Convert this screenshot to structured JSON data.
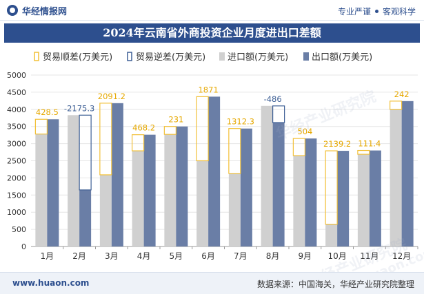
{
  "header": {
    "brand_name": "华经情报网",
    "tagline_left": "专业严谨",
    "tagline_right": "客观科学"
  },
  "footer": {
    "website": "www.huaon.com",
    "source": "数据来源：中国海关，华经产业研究院整理"
  },
  "watermarks": [
    "华经产业研究院",
    "华经产业研究院",
    "www.huaon.com"
  ],
  "colors": {
    "brand": "#2d4f8e",
    "surplus_outline": "#f2c037",
    "deficit_outline": "#3d5f95",
    "imports": "#d0d0d0",
    "exports": "#6a7ea6",
    "surplus_label": "#e6a800",
    "deficit_label": "#3d5f95"
  },
  "chart_data": {
    "type": "bar",
    "title": "2024年云南省外商投资企业月度进出口差额",
    "categories": [
      "1月",
      "2月",
      "3月",
      "4月",
      "5月",
      "6月",
      "7月",
      "8月",
      "9月",
      "10月",
      "11月",
      "12月"
    ],
    "ylim": [
      0,
      5000
    ],
    "yticks": [
      0,
      500,
      1000,
      1500,
      2000,
      2500,
      3000,
      3500,
      4000,
      4500,
      5000
    ],
    "legend_position": "top",
    "legend": [
      "贸易顺差(万美元)",
      "贸易逆差(万美元)",
      "进口额(万美元)",
      "出口额(万美元)"
    ],
    "series": [
      {
        "name": "进口额(万美元)",
        "values": [
          3280,
          3830,
          2090,
          2790,
          3270,
          2500,
          2130,
          4100,
          2650,
          650,
          2690,
          4000
        ]
      },
      {
        "name": "出口额(万美元)",
        "values": [
          3710,
          1650,
          4180,
          3260,
          3500,
          4370,
          3440,
          3614,
          3150,
          2790,
          2800,
          4240
        ]
      }
    ],
    "balance": [
      428.5,
      -2175.3,
      2091.2,
      468.2,
      231,
      1871,
      1312.3,
      -486,
      504,
      2139.2,
      111.4,
      242
    ],
    "balance_labels": [
      "428.5",
      "-2175.3",
      "2091.2",
      "468.2",
      "231",
      "1871",
      "1312.3",
      "-486",
      "504",
      "2139.2",
      "111.4",
      "242"
    ]
  }
}
